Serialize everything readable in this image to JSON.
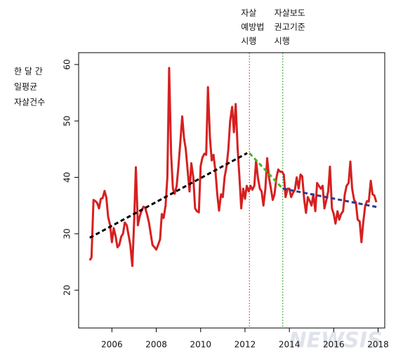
{
  "chart_data": {
    "type": "line",
    "ylabel": [
      "한 달 간",
      "일평균",
      "자살건수"
    ],
    "xlim": [
      2004.5,
      2018.3
    ],
    "ylim": [
      13.3,
      62.1
    ],
    "xticks": [
      2006,
      2008,
      2010,
      2012,
      2014,
      2016,
      2018
    ],
    "yticks": [
      20,
      30,
      40,
      50,
      60
    ],
    "watermark": "NEWSIS",
    "x": [
      2005.0,
      2005.08,
      2005.17,
      2005.25,
      2005.33,
      2005.42,
      2005.5,
      2005.58,
      2005.67,
      2005.75,
      2005.83,
      2005.92,
      2006.0,
      2006.08,
      2006.17,
      2006.25,
      2006.33,
      2006.42,
      2006.5,
      2006.58,
      2006.67,
      2006.75,
      2006.83,
      2006.92,
      2007.0,
      2007.08,
      2007.17,
      2007.25,
      2007.33,
      2007.42,
      2007.5,
      2007.58,
      2007.67,
      2007.75,
      2007.83,
      2007.92,
      2008.0,
      2008.08,
      2008.17,
      2008.25,
      2008.33,
      2008.42,
      2008.5,
      2008.58,
      2008.67,
      2008.75,
      2008.83,
      2008.92,
      2009.0,
      2009.08,
      2009.17,
      2009.25,
      2009.33,
      2009.42,
      2009.5,
      2009.58,
      2009.67,
      2009.75,
      2009.83,
      2009.92,
      2010.0,
      2010.08,
      2010.17,
      2010.25,
      2010.33,
      2010.42,
      2010.5,
      2010.58,
      2010.67,
      2010.75,
      2010.83,
      2010.92,
      2011.0,
      2011.08,
      2011.17,
      2011.25,
      2011.33,
      2011.42,
      2011.5,
      2011.58,
      2011.67,
      2011.75,
      2011.83,
      2011.92,
      2012.0,
      2012.08,
      2012.17,
      2012.25,
      2012.33,
      2012.42,
      2012.5,
      2012.58,
      2012.67,
      2012.75,
      2012.83,
      2012.92,
      2013.0,
      2013.08,
      2013.17,
      2013.25,
      2013.33,
      2013.42,
      2013.5,
      2013.58,
      2013.67,
      2013.75,
      2013.83,
      2013.92,
      2014.0,
      2014.08,
      2014.17,
      2014.25,
      2014.33,
      2014.42,
      2014.5,
      2014.58,
      2014.67,
      2014.75,
      2014.83,
      2014.92,
      2015.0,
      2015.08,
      2015.17,
      2015.25,
      2015.33,
      2015.42,
      2015.5,
      2015.58,
      2015.67,
      2015.75,
      2015.83,
      2015.92,
      2016.0,
      2016.08,
      2016.17,
      2016.25,
      2016.33,
      2016.42,
      2016.5,
      2016.58,
      2016.67,
      2016.75,
      2016.83,
      2016.92,
      2017.0,
      2017.08,
      2017.17,
      2017.25,
      2017.33,
      2017.42,
      2017.5,
      2017.58,
      2017.67,
      2017.75,
      2017.83,
      2017.92
    ],
    "series": [
      {
        "color": "#d62020",
        "values": [
          25.3,
          25.8,
          36,
          35.8,
          35.5,
          34.5,
          36.2,
          36.3,
          37.6,
          36.4,
          33,
          31.5,
          28.5,
          31,
          29.5,
          27.6,
          28,
          29.5,
          30,
          32,
          31.5,
          29.8,
          28,
          24.3,
          32,
          41.8,
          31.5,
          33,
          34,
          34.8,
          34.6,
          33.5,
          32,
          30,
          28,
          27.6,
          27.2,
          28,
          29,
          33.5,
          32.8,
          35,
          40,
          59.4,
          44,
          38,
          37.1,
          38.5,
          42,
          46,
          50.8,
          47,
          45,
          41,
          37.5,
          42.5,
          40,
          34.5,
          34,
          33.8,
          42,
          43.5,
          44.2,
          44,
          56,
          47,
          43,
          44,
          41,
          37,
          34.1,
          37,
          36.5,
          40,
          42,
          45,
          50,
          52.5,
          48,
          53,
          45,
          40,
          34.5,
          38,
          36.2,
          38.5,
          37.5,
          38.5,
          37.8,
          38.5,
          43,
          40,
          38,
          37.5,
          35,
          38,
          43.4,
          40,
          38,
          36,
          37,
          40,
          41.4,
          41,
          41,
          40.5,
          36.5,
          38,
          38,
          36.5,
          37.3,
          37.8,
          40,
          38,
          40.5,
          40.2,
          36,
          33.7,
          36.5,
          35.8,
          35,
          37,
          34,
          39,
          38.5,
          38,
          38.5,
          34.5,
          36,
          37.5,
          41.9,
          34.5,
          33.5,
          31.8,
          34,
          32.5,
          33.5,
          34,
          37,
          38.5,
          39,
          42.8,
          38,
          36,
          35.5,
          32.5,
          32.2,
          28.5,
          32,
          35,
          35.8,
          35.7,
          39.4,
          37,
          36.8,
          35.6
        ]
      }
    ],
    "trends": [
      {
        "color": "#000000",
        "x": [
          2005.0,
          2012.1
        ],
        "values": [
          29.3,
          44.3
        ]
      },
      {
        "color": "#4caf2a",
        "x": [
          2012.2,
          2013.7
        ],
        "values": [
          44.3,
          38
        ]
      },
      {
        "color": "#2e3a8c",
        "x": [
          2013.7,
          2018.0
        ],
        "values": [
          38,
          34.7
        ]
      }
    ],
    "vlines": [
      {
        "x": 2012.2,
        "color": "#e07060",
        "label": [
          "자살",
          "예방법",
          "시행"
        ]
      },
      {
        "x": 2013.7,
        "color": "#5cb85c",
        "label": [
          "자살보도",
          "권고기준",
          "시행"
        ]
      }
    ]
  }
}
